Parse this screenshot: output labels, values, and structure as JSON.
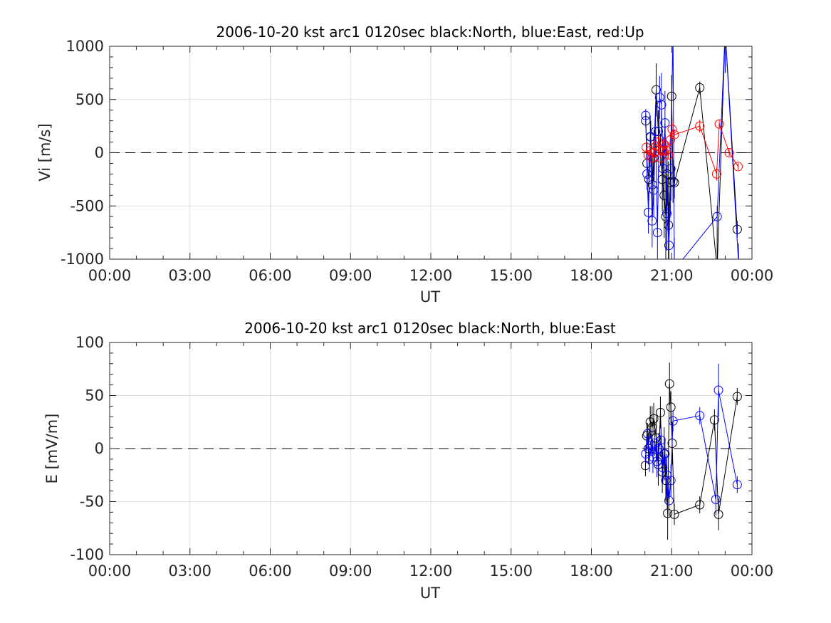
{
  "chart_data": [
    {
      "type": "scatter",
      "title": "2006-10-20 kst arc1 0120sec black:North, blue:East, red:Up",
      "xlabel": "UT",
      "ylabel": "Vi [m/s]",
      "xlim": [
        0,
        24
      ],
      "ylim": [
        -1000,
        1000
      ],
      "xticks": [
        "00:00",
        "03:00",
        "06:00",
        "09:00",
        "12:00",
        "15:00",
        "18:00",
        "21:00",
        "00:00"
      ],
      "yticks": [
        1000,
        500,
        0,
        -500,
        -1000
      ],
      "ytick_labels": [
        "1000",
        "500",
        "0",
        "-500",
        "-1000"
      ],
      "grid": true,
      "zero_line": true,
      "series": [
        {
          "name": "North",
          "color": "#000000",
          "x": [
            20.03,
            20.08,
            20.15,
            20.22,
            20.28,
            20.33,
            20.42,
            20.5,
            20.58,
            20.65,
            20.72,
            20.78,
            20.83,
            20.88,
            20.95,
            21.0,
            21.05,
            21.1,
            22.05,
            22.7,
            23.0,
            23.45
          ],
          "y": [
            300,
            -100,
            -250,
            150,
            -300,
            -50,
            590,
            200,
            30,
            -250,
            -400,
            -600,
            -200,
            -680,
            -280,
            530,
            -270,
            -280,
            610,
            -1100,
            1150,
            -720
          ],
          "err": [
            60,
            200,
            200,
            150,
            300,
            200,
            250,
            200,
            150,
            300,
            400,
            450,
            300,
            600,
            300,
            200,
            200,
            150,
            60,
            400,
            400,
            80
          ]
        },
        {
          "name": "East",
          "color": "#0000ff",
          "x": [
            20.03,
            20.08,
            20.13,
            20.2,
            20.27,
            20.33,
            20.4,
            20.47,
            20.55,
            20.62,
            20.68,
            20.75,
            20.82,
            20.9,
            20.97,
            21.05,
            21.1,
            22.7,
            23.0,
            23.5
          ],
          "y": [
            350,
            -200,
            -560,
            150,
            -640,
            -350,
            200,
            -750,
            520,
            450,
            -150,
            280,
            -570,
            -870,
            -150,
            1150,
            -1100,
            -600,
            1150,
            -1050
          ],
          "err": [
            60,
            150,
            200,
            200,
            250,
            250,
            250,
            250,
            200,
            300,
            300,
            300,
            350,
            400,
            300,
            300,
            300,
            100,
            400,
            200
          ]
        },
        {
          "name": "Up",
          "color": "#ff0000",
          "x": [
            20.05,
            20.12,
            20.2,
            20.27,
            20.35,
            20.42,
            20.5,
            20.58,
            20.65,
            20.72,
            20.8,
            20.88,
            20.95,
            21.02,
            21.1,
            22.05,
            22.68,
            22.78,
            23.15,
            23.48
          ],
          "y": [
            50,
            -20,
            20,
            -50,
            0,
            60,
            100,
            -50,
            20,
            80,
            20,
            -20,
            120,
            220,
            170,
            250,
            -200,
            270,
            0,
            -130
          ],
          "err": [
            30,
            30,
            40,
            50,
            40,
            60,
            60,
            50,
            40,
            60,
            50,
            40,
            60,
            80,
            50,
            60,
            60,
            40,
            30,
            30
          ]
        }
      ]
    },
    {
      "type": "scatter",
      "title": "2006-10-20 kst arc1 0120sec black:North, blue:East",
      "xlabel": "UT",
      "ylabel": "E [mV/m]",
      "xlim": [
        0,
        24
      ],
      "ylim": [
        -100,
        100
      ],
      "xticks": [
        "00:00",
        "03:00",
        "06:00",
        "09:00",
        "12:00",
        "15:00",
        "18:00",
        "21:00",
        "00:00"
      ],
      "yticks": [
        100,
        50,
        0,
        -50,
        -100
      ],
      "ytick_labels": [
        "100",
        "50",
        "0",
        "-50",
        "-100"
      ],
      "grid": true,
      "zero_line": true,
      "series": [
        {
          "name": "North",
          "color": "#000000",
          "x": [
            20.02,
            20.07,
            20.13,
            20.2,
            20.27,
            20.33,
            20.42,
            20.5,
            20.58,
            20.65,
            20.72,
            20.78,
            20.85,
            20.92,
            20.97,
            21.02,
            21.1,
            22.05,
            22.6,
            22.75,
            23.45
          ],
          "y": [
            -16,
            12,
            0,
            25,
            20,
            28,
            10,
            -15,
            34,
            -22,
            -5,
            -30,
            -61,
            61,
            39,
            5,
            -62,
            -53,
            27,
            -62,
            49
          ],
          "err": [
            10,
            12,
            15,
            15,
            20,
            15,
            20,
            20,
            15,
            20,
            25,
            20,
            25,
            20,
            15,
            20,
            10,
            8,
            10,
            15,
            8
          ]
        },
        {
          "name": "East",
          "color": "#0000ff",
          "x": [
            20.03,
            20.1,
            20.17,
            20.23,
            20.3,
            20.37,
            20.45,
            20.52,
            20.6,
            20.67,
            20.75,
            20.82,
            20.9,
            20.97,
            21.05,
            22.05,
            22.65,
            22.75,
            23.45
          ],
          "y": [
            -5,
            14,
            -10,
            3,
            -8,
            5,
            -12,
            0,
            8,
            -18,
            -5,
            -25,
            -49,
            -30,
            26,
            31,
            -48,
            55,
            -34
          ],
          "err": [
            8,
            10,
            12,
            10,
            15,
            12,
            15,
            15,
            12,
            15,
            15,
            20,
            15,
            15,
            10,
            8,
            15,
            25,
            8
          ]
        }
      ]
    }
  ]
}
